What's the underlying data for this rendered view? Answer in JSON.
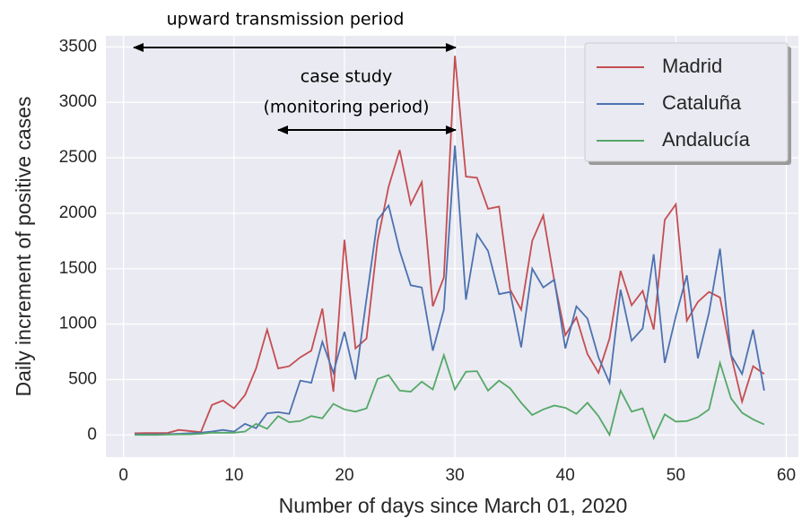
{
  "chart_data": {
    "type": "line",
    "xlabel": "Number of days since March 01, 2020",
    "ylabel": "Daily increment of positive cases",
    "annotations": [
      "upward transmission period",
      "case study",
      "(monitoring period)"
    ],
    "x": [
      1,
      2,
      3,
      4,
      5,
      6,
      7,
      8,
      9,
      10,
      11,
      12,
      13,
      14,
      15,
      16,
      17,
      18,
      19,
      20,
      21,
      22,
      23,
      24,
      25,
      26,
      27,
      28,
      29,
      30,
      31,
      32,
      33,
      34,
      35,
      36,
      37,
      38,
      39,
      40,
      41,
      42,
      43,
      44,
      45,
      46,
      47,
      48,
      49,
      50,
      51,
      52,
      53,
      54,
      55,
      56,
      57,
      58
    ],
    "series": [
      {
        "name": "Madrid",
        "color": "#c44e52",
        "values": [
          15,
          17,
          17,
          18,
          45,
          35,
          25,
          270,
          310,
          240,
          360,
          600,
          950,
          600,
          620,
          700,
          760,
          1140,
          390,
          1760,
          780,
          870,
          1750,
          2240,
          2570,
          2080,
          2280,
          1160,
          1420,
          3420,
          2330,
          2320,
          2040,
          2060,
          1310,
          1130,
          1750,
          1980,
          1390,
          900,
          1060,
          730,
          560,
          870,
          1480,
          1170,
          1300,
          950,
          1940,
          2080,
          1030,
          1200,
          1290,
          1240,
          720,
          300,
          620,
          550
        ]
      },
      {
        "name": "Cataluña",
        "color": "#4c72b0",
        "values": [
          5,
          5,
          5,
          7,
          10,
          15,
          20,
          30,
          45,
          30,
          100,
          60,
          195,
          205,
          190,
          490,
          470,
          840,
          560,
          930,
          500,
          1230,
          1940,
          2070,
          1660,
          1350,
          1330,
          760,
          1130,
          2610,
          1220,
          1810,
          1660,
          1270,
          1290,
          790,
          1500,
          1330,
          1400,
          780,
          1160,
          1050,
          700,
          470,
          1310,
          850,
          960,
          1630,
          650,
          1070,
          1440,
          690,
          1100,
          1680,
          720,
          550,
          950,
          400
        ]
      },
      {
        "name": "Andalucía",
        "color": "#55a868",
        "values": [
          0,
          0,
          0,
          3,
          5,
          5,
          10,
          20,
          20,
          20,
          30,
          100,
          55,
          170,
          115,
          125,
          170,
          150,
          280,
          230,
          210,
          240,
          505,
          540,
          400,
          390,
          480,
          410,
          720,
          410,
          570,
          575,
          400,
          490,
          420,
          290,
          180,
          230,
          265,
          245,
          190,
          290,
          170,
          0,
          400,
          210,
          240,
          -30,
          185,
          120,
          125,
          160,
          230,
          650,
          330,
          200,
          140,
          95
        ]
      }
    ],
    "xlim": [
      -1.6,
      61.1
    ],
    "ylim": [
      -200,
      3600
    ],
    "xticks": [
      0,
      10,
      20,
      30,
      40,
      50,
      60
    ],
    "yticks": [
      0,
      500,
      1000,
      1500,
      2000,
      2500,
      3000,
      3500
    ],
    "grid": true,
    "legend": "upper right"
  }
}
